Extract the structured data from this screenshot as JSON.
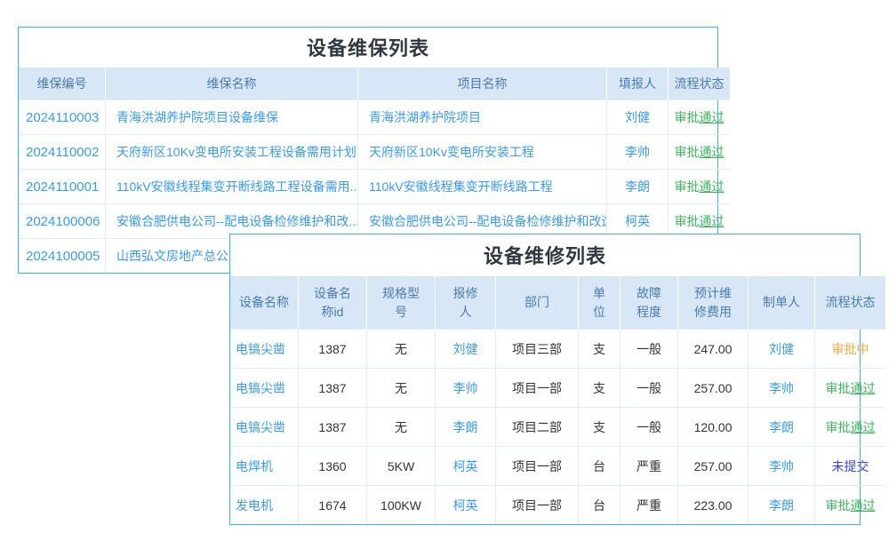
{
  "colors": {
    "panel_border": "#3db5e9",
    "header_bg": "#d8e7f6",
    "header_text": "#4a7cae",
    "link_blue": "#3b9af0",
    "text_dark": "#333333",
    "title_text": "#32383e",
    "status_approved": "#3cb35c",
    "status_pending": "#f7a845",
    "status_unsubmitted": "#3a45e0"
  },
  "maintenance_table": {
    "title": "设备维保列表",
    "headers": [
      "维保编号",
      "维保名称",
      "项目名称",
      "填报人",
      "流程状态"
    ],
    "rows": [
      {
        "cells": [
          "2024110003",
          "青海洪湖养护院项目设备维保",
          "青海洪湖养护院项目",
          "刘健"
        ],
        "status": "审批通过",
        "status_type": "approved"
      },
      {
        "cells": [
          "2024110002",
          "天府新区10Kv变电所安装工程设备需用计划",
          "天府新区10Kv变电所安装工程",
          "李帅"
        ],
        "status": "审批通过",
        "status_type": "approved"
      },
      {
        "cells": [
          "2024110001",
          "110kV安徽线程集变开断线路工程设备需用...",
          "110kV安徽线程集变开断线路工程",
          "李朗"
        ],
        "status": "审批通过",
        "status_type": "approved"
      },
      {
        "cells": [
          "2024100006",
          "安徽合肥供电公司--配电设备检修维护和改...",
          "安徽合肥供电公司--配电设备检修维护和改造",
          "柯英"
        ],
        "status": "审批通过",
        "status_type": "approved"
      },
      {
        "cells": [
          "2024100005",
          "山西弘文房地产总公司电",
          "",
          ""
        ],
        "status": "",
        "status_type": "none"
      }
    ]
  },
  "repair_table": {
    "title": "设备维修列表",
    "headers": [
      "设备名称",
      "设备名\n称id",
      "规格型\n号",
      "报修\n人",
      "部门",
      "单\n位",
      "故障\n程度",
      "预计维\n修费用",
      "制单人",
      "流程状态"
    ],
    "rows": [
      {
        "cells": [
          "电镐尖凿",
          "1387",
          "无",
          "刘健",
          "项目三部",
          "支",
          "一般",
          "247.00",
          "刘健"
        ],
        "status": "审批中",
        "status_type": "pending"
      },
      {
        "cells": [
          "电镐尖凿",
          "1387",
          "无",
          "李帅",
          "项目一部",
          "支",
          "一般",
          "257.00",
          "李帅"
        ],
        "status": "审批通过",
        "status_type": "approved"
      },
      {
        "cells": [
          "电镐尖凿",
          "1387",
          "无",
          "李朗",
          "项目二部",
          "支",
          "一般",
          "120.00",
          "李朗"
        ],
        "status": "审批通过",
        "status_type": "approved"
      },
      {
        "cells": [
          "电焊机",
          "1360",
          "5KW",
          "柯英",
          "项目一部",
          "台",
          "严重",
          "257.00",
          "李帅"
        ],
        "status": "未提交",
        "status_type": "unsubmitted"
      },
      {
        "cells": [
          "发电机",
          "1674",
          "100KW",
          "柯英",
          "项目一部",
          "台",
          "严重",
          "223.00",
          "李朗"
        ],
        "status": "审批通过",
        "status_type": "approved"
      }
    ]
  }
}
